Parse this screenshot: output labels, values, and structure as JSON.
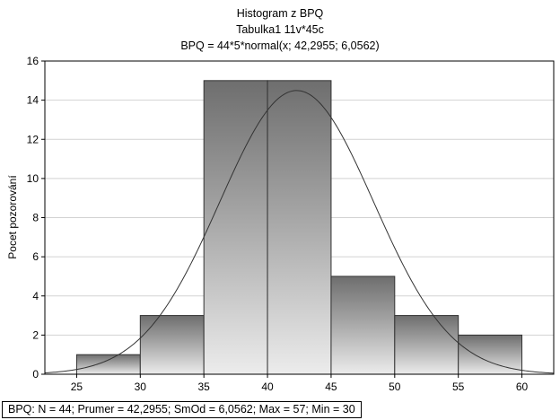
{
  "chart_data": {
    "type": "bar",
    "title": "Histogram z BPQ",
    "subtitle": "Tabulka1 11v*45c",
    "formula": "BPQ = 44*5*normal(x; 42,2955; 6,0562)",
    "ylabel": "Pocet pozorování",
    "xlabel": "",
    "bins": [
      {
        "from": 25,
        "to": 30,
        "count": 1
      },
      {
        "from": 30,
        "to": 35,
        "count": 3
      },
      {
        "from": 35,
        "to": 40,
        "count": 15
      },
      {
        "from": 40,
        "to": 45,
        "count": 15
      },
      {
        "from": 45,
        "to": 50,
        "count": 5
      },
      {
        "from": 50,
        "to": 55,
        "count": 3
      },
      {
        "from": 55,
        "to": 60,
        "count": 2
      }
    ],
    "xlim": [
      22.5,
      62.5
    ],
    "ylim": [
      0,
      16
    ],
    "xticks": [
      25,
      30,
      35,
      40,
      45,
      50,
      55,
      60
    ],
    "yticks": [
      0,
      2,
      4,
      6,
      8,
      10,
      12,
      14,
      16
    ],
    "normal_curve": {
      "n": 44,
      "bin_width": 5,
      "mean": 42.2955,
      "sd": 6.0562
    },
    "grid": true,
    "stats_text": "BPQ:   N = 44; Prumer = 42,2955; SmOd = 6,0562; Max = 57; Min = 30"
  }
}
